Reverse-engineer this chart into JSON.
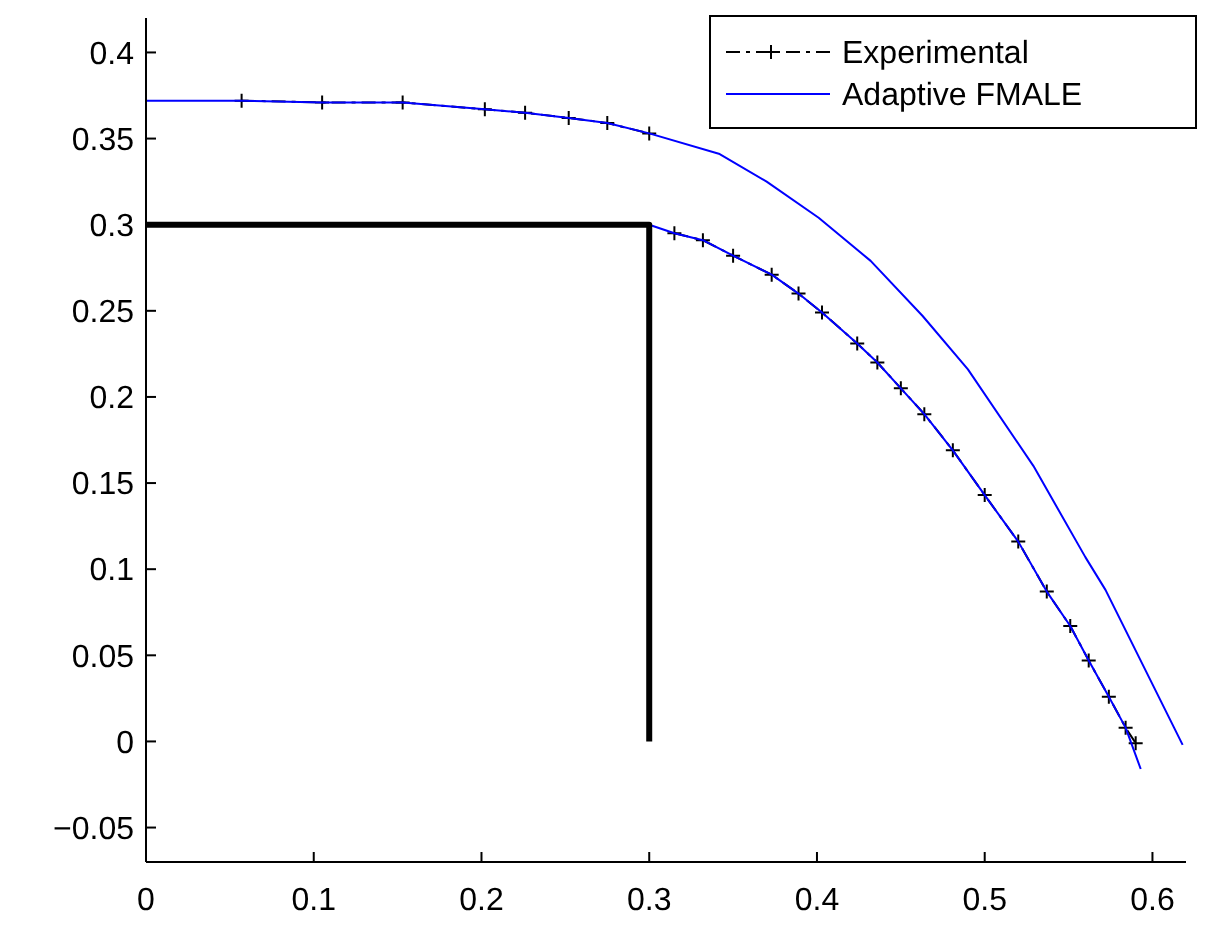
{
  "chart_data": {
    "type": "line",
    "xlim": [
      0,
      0.62
    ],
    "ylim": [
      -0.07,
      0.42
    ],
    "xticks": [
      0,
      0.1,
      0.2,
      0.3,
      0.4,
      0.5,
      0.6
    ],
    "yticks": [
      -0.05,
      0,
      0.05,
      0.1,
      0.15,
      0.2,
      0.25,
      0.3,
      0.35,
      0.4
    ],
    "grid": false,
    "legend": "top right",
    "series": [
      {
        "name": "Experimental",
        "color": "#000000",
        "marker": "cross",
        "line_style": "dashed",
        "x": [
          0.057,
          0.105,
          0.153,
          0.202,
          0.226,
          0.252,
          0.275,
          0.3,
          null,
          0.315,
          0.332,
          0.35,
          0.373,
          0.389,
          0.403,
          0.424,
          0.436,
          0.45,
          0.464,
          0.481,
          0.5,
          0.52,
          0.537,
          0.551,
          0.562,
          0.574,
          0.584,
          0.59
        ],
        "values": [
          0.372,
          0.371,
          0.371,
          0.367,
          0.365,
          0.362,
          0.359,
          0.353,
          null,
          0.295,
          0.291,
          0.282,
          0.271,
          0.26,
          0.249,
          0.231,
          0.22,
          0.205,
          0.19,
          0.169,
          0.143,
          0.116,
          0.087,
          0.067,
          0.047,
          0.026,
          0.008,
          -0.001
        ]
      },
      {
        "name": "Adaptive FMALE",
        "color": "#0000ff",
        "marker": "none",
        "line_style": "solid",
        "x": [
          0,
          0.057,
          0.105,
          0.153,
          0.202,
          0.226,
          0.252,
          0.275,
          0.3,
          0.342,
          0.37,
          0.401,
          0.432,
          0.463,
          0.49,
          0.529,
          0.56,
          0.572,
          0.618,
          null,
          0.3,
          0.315,
          0.332,
          0.35,
          0.373,
          0.389,
          0.403,
          0.424,
          0.436,
          0.45,
          0.464,
          0.481,
          0.5,
          0.52,
          0.537,
          0.551,
          0.562,
          0.574,
          0.584,
          0.593
        ],
        "values": [
          0.372,
          0.372,
          0.371,
          0.371,
          0.367,
          0.365,
          0.362,
          0.359,
          0.353,
          0.341,
          0.325,
          0.304,
          0.279,
          0.247,
          0.216,
          0.16,
          0.107,
          0.088,
          -0.002,
          null,
          0.3,
          0.295,
          0.291,
          0.282,
          0.271,
          0.26,
          0.249,
          0.231,
          0.22,
          0.205,
          0.19,
          0.169,
          0.143,
          0.116,
          0.087,
          0.067,
          0.047,
          0.026,
          0.008,
          -0.016
        ]
      },
      {
        "color": "#000000",
        "marker": "none",
        "line_style": "solid",
        "x": [
          0,
          0.3,
          0.3
        ],
        "values": [
          0.3,
          0.3,
          0
        ]
      }
    ]
  }
}
